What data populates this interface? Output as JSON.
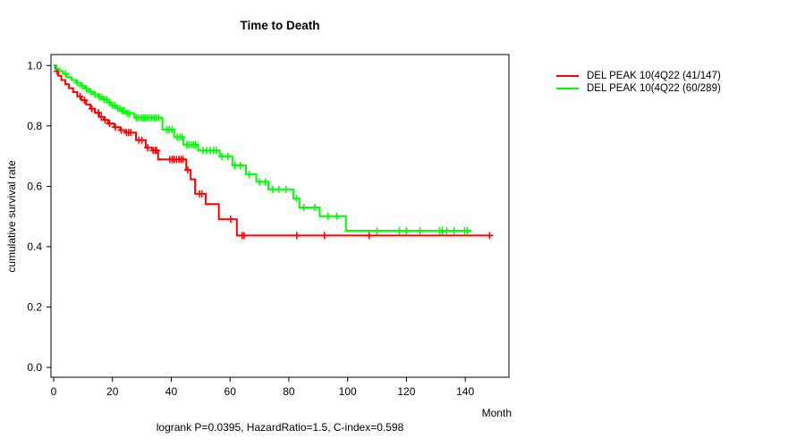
{
  "title": "Time to Death",
  "footer": "logrank P=0.0395, HazardRatio=1.5, C-index=0.598",
  "axes": {
    "x": {
      "label": "Month",
      "ticks": [
        0,
        20,
        40,
        60,
        80,
        100,
        120,
        140
      ],
      "range": [
        0,
        155
      ]
    },
    "y": {
      "label": "cumulative survival rate",
      "ticks": [
        "0.0",
        "0.2",
        "0.4",
        "0.6",
        "0.8",
        "1.0"
      ],
      "range": [
        0,
        1
      ]
    }
  },
  "legend": {
    "items": [
      {
        "label": "DEL PEAK 10(4Q22 (41/147)",
        "color": "#ff0000"
      },
      {
        "label": "DEL PEAK 10(4Q22 (60/289)",
        "color": "#00ff00"
      }
    ]
  },
  "chart_data": {
    "type": "line",
    "subtype": "kaplan-meier-step",
    "title": "Time to Death",
    "xlabel": "Month",
    "ylabel": "cumulative survival rate",
    "xlim": [
      0,
      155
    ],
    "ylim": [
      0,
      1
    ],
    "grid": false,
    "legend_position": "right-outside",
    "series": [
      {
        "name": "DEL PEAK 10(4Q22 (41/147)",
        "color": "#ff0000",
        "events_total": "41/147",
        "end_month": 149,
        "steps": [
          [
            0,
            1.0
          ],
          [
            0.6,
            0.99
          ],
          [
            1.1,
            0.981
          ],
          [
            1.6,
            0.966
          ],
          [
            2.6,
            0.952
          ],
          [
            4,
            0.938
          ],
          [
            5.2,
            0.925
          ],
          [
            6.6,
            0.912
          ],
          [
            8,
            0.898
          ],
          [
            9.5,
            0.885
          ],
          [
            11,
            0.871
          ],
          [
            12.5,
            0.857
          ],
          [
            14,
            0.844
          ],
          [
            15.5,
            0.83
          ],
          [
            17,
            0.82
          ],
          [
            18.6,
            0.808
          ],
          [
            20.6,
            0.796
          ],
          [
            22.6,
            0.786
          ],
          [
            24.3,
            0.778
          ],
          [
            28,
            0.753
          ],
          [
            31.3,
            0.728
          ],
          [
            33.5,
            0.719
          ],
          [
            35.5,
            0.689
          ],
          [
            45.1,
            0.654
          ],
          [
            46.6,
            0.623
          ],
          [
            48.1,
            0.575
          ],
          [
            51.7,
            0.541
          ],
          [
            56.2,
            0.491
          ],
          [
            62.3,
            0.437
          ]
        ],
        "censor_months": [
          1.2,
          9,
          10.5,
          13,
          15.2,
          16.2,
          17.5,
          19,
          21,
          23,
          24.8,
          25.5,
          26.2,
          29,
          30,
          32,
          33.8,
          34.5,
          35,
          39.5,
          40.3,
          41,
          41.8,
          42.6,
          43.3,
          44,
          45.6,
          49.6,
          50.4,
          60.2,
          64.1,
          64.8,
          82.7,
          92.1,
          107.3,
          148.3
        ]
      },
      {
        "name": "DEL PEAK 10(4Q22 (60/289)",
        "color": "#00ff00",
        "events_total": "60/289",
        "end_month": 142,
        "steps": [
          [
            0,
            1.0
          ],
          [
            0.9,
            0.99
          ],
          [
            1.9,
            0.982
          ],
          [
            3.1,
            0.973
          ],
          [
            4.6,
            0.962
          ],
          [
            6.1,
            0.952
          ],
          [
            7.6,
            0.943
          ],
          [
            9.1,
            0.933
          ],
          [
            10.6,
            0.923
          ],
          [
            12.1,
            0.913
          ],
          [
            13.7,
            0.905
          ],
          [
            15.2,
            0.896
          ],
          [
            16.7,
            0.888
          ],
          [
            18.2,
            0.878
          ],
          [
            19.8,
            0.868
          ],
          [
            21.3,
            0.858
          ],
          [
            23,
            0.85
          ],
          [
            24.4,
            0.842
          ],
          [
            27.4,
            0.827
          ],
          [
            37,
            0.788
          ],
          [
            41,
            0.763
          ],
          [
            44.1,
            0.738
          ],
          [
            49.1,
            0.719
          ],
          [
            56.5,
            0.699
          ],
          [
            60.8,
            0.669
          ],
          [
            65.4,
            0.64
          ],
          [
            68.9,
            0.615
          ],
          [
            73,
            0.59
          ],
          [
            81.5,
            0.56
          ],
          [
            83.6,
            0.53
          ],
          [
            90.5,
            0.501
          ],
          [
            99.4,
            0.453
          ]
        ],
        "censor_months": [
          4,
          8,
          9.7,
          11.2,
          12.6,
          14,
          15.6,
          16.3,
          17.1,
          18,
          19,
          20,
          20.7,
          21.8,
          22.5,
          23.4,
          24,
          25,
          25.7,
          28.2,
          29,
          29.8,
          30.5,
          31.2,
          32,
          32.7,
          33.4,
          34.2,
          35,
          35.8,
          38.5,
          39.3,
          40.2,
          42,
          43,
          43.7,
          45.3,
          46,
          46.8,
          47.5,
          48.3,
          50.8,
          52,
          53.2,
          54.4,
          55.3,
          57.2,
          59.3,
          61.7,
          63.5,
          66.5,
          70,
          72,
          74.5,
          76.6,
          79,
          82.6,
          85.1,
          88.8,
          93.3,
          96.3,
          110,
          117.6,
          120,
          124.6,
          131.3,
          132.2,
          133.7,
          136.2,
          139.8,
          140.7
        ]
      }
    ]
  }
}
